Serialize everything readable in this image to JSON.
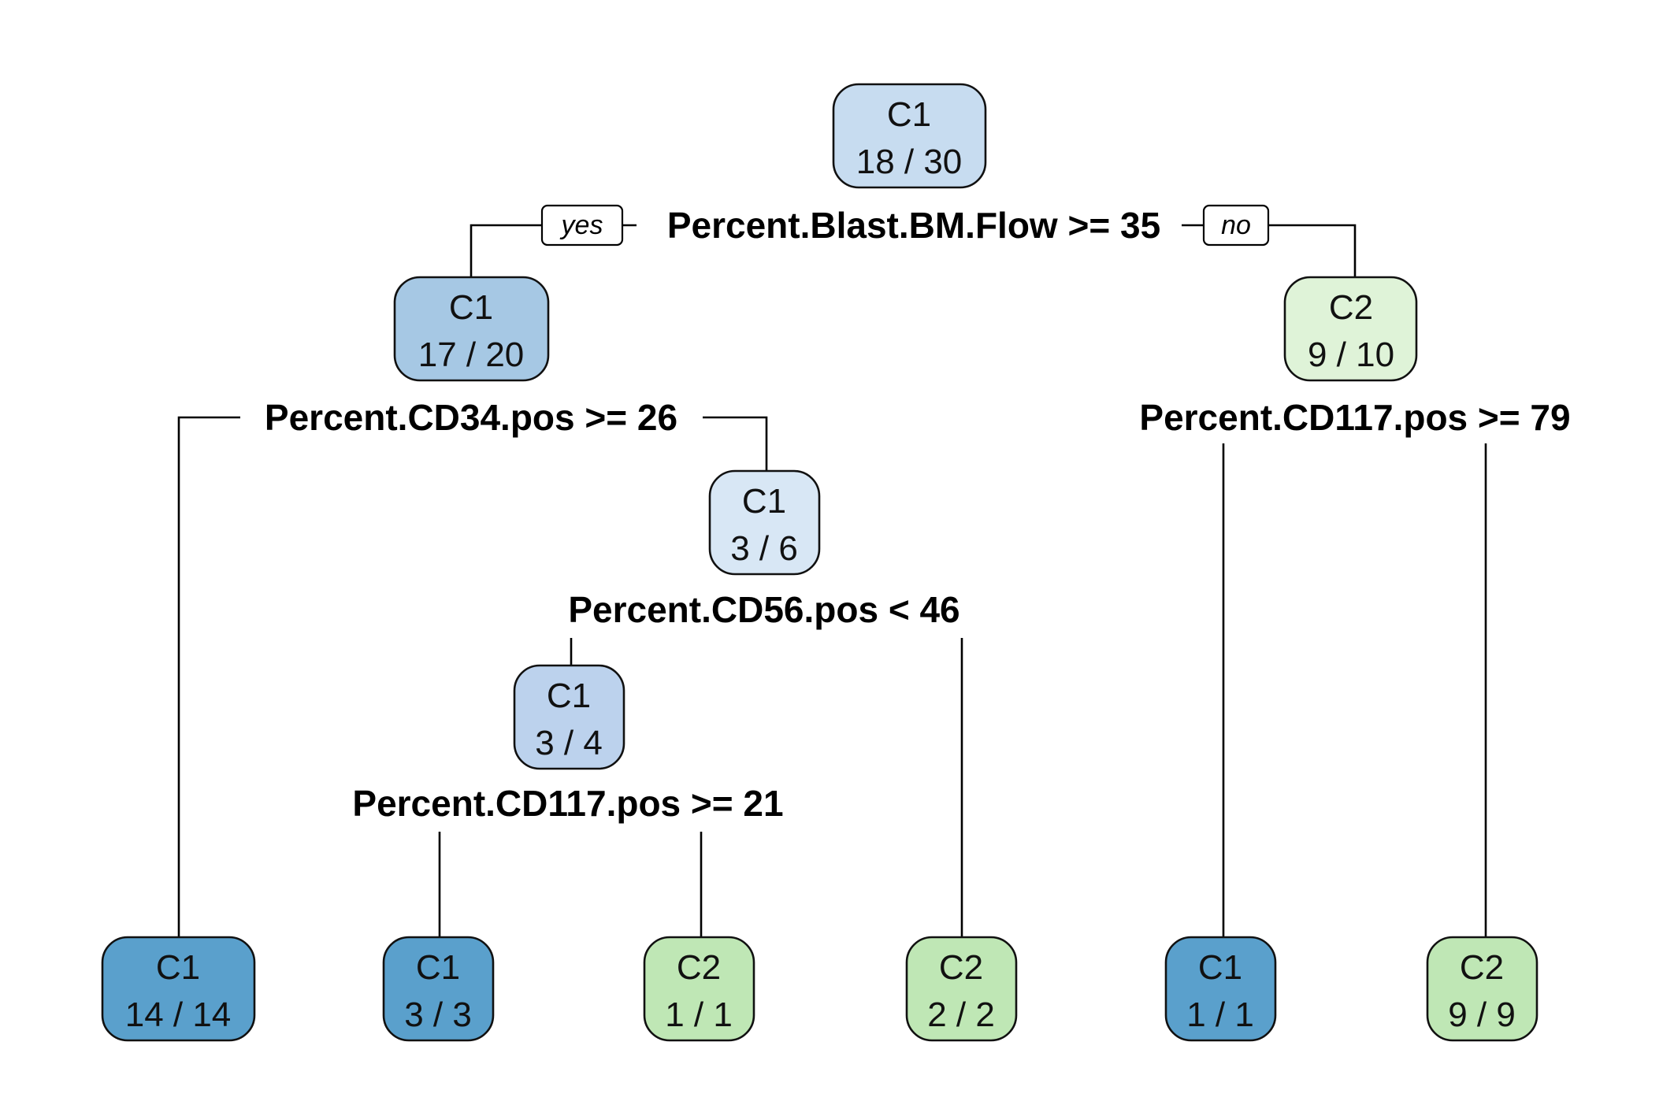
{
  "tree": {
    "colors": {
      "c1_light": "#c7dcf0",
      "c1_medium": "#a6c8e4",
      "c1_pale": "#d8e7f5",
      "c1_soft": "#bcd2ed",
      "c1_dark": "#5aa0cc",
      "c2_pale": "#dff3d8",
      "c2_medium": "#bfe7b5"
    },
    "nodes": [
      {
        "id": "root",
        "class": "C1",
        "count": "18 / 30"
      },
      {
        "id": "left",
        "class": "C1",
        "count": "17 / 20"
      },
      {
        "id": "right",
        "class": "C2",
        "count": "9 / 10"
      },
      {
        "id": "mid",
        "class": "C1",
        "count": "3 / 6"
      },
      {
        "id": "midleft",
        "class": "C1",
        "count": "3 / 4"
      },
      {
        "id": "leaf1",
        "class": "C1",
        "count": "14 / 14"
      },
      {
        "id": "leaf2",
        "class": "C1",
        "count": "3 / 3"
      },
      {
        "id": "leaf3",
        "class": "C2",
        "count": "1 / 1"
      },
      {
        "id": "leaf4",
        "class": "C2",
        "count": "2 / 2"
      },
      {
        "id": "leaf5",
        "class": "C1",
        "count": "1 / 1"
      },
      {
        "id": "leaf6",
        "class": "C2",
        "count": "9 / 9"
      }
    ],
    "splits": [
      {
        "id": "s-root",
        "label": "Percent.Blast.BM.Flow >= 35"
      },
      {
        "id": "s-left",
        "label": "Percent.CD34.pos >= 26"
      },
      {
        "id": "s-right",
        "label": "Percent.CD117.pos >= 79"
      },
      {
        "id": "s-mid",
        "label": "Percent.CD56.pos < 46"
      },
      {
        "id": "s-midleft",
        "label": "Percent.CD117.pos >= 21"
      }
    ],
    "yes_label": "yes",
    "no_label": "no"
  }
}
